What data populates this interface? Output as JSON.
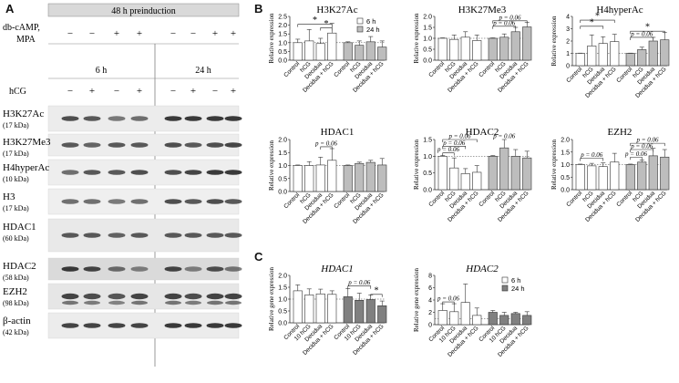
{
  "panel_labels": [
    "A",
    "B",
    "C"
  ],
  "blot": {
    "preinduction_label": "48 h preinduction",
    "treatment_label": "db-cAMP, MPA",
    "treatment_signs": [
      "−",
      "−",
      "+",
      "+",
      "−",
      "−",
      "+",
      "+"
    ],
    "time_labels": [
      "6 h",
      "24 h"
    ],
    "hcg_label": "hCG",
    "hcg_signs": [
      "−",
      "+",
      "−",
      "+",
      "−",
      "+",
      "−",
      "+"
    ],
    "rows": [
      {
        "name": "H3K27Ac",
        "kda": "(17 kDa)"
      },
      {
        "name": "H3K27Me3",
        "kda": "(17 kDa)"
      },
      {
        "name": "H4hyperAc",
        "kda": "(10 kDa)"
      },
      {
        "name": "H3",
        "kda": "(17 kDa)"
      },
      {
        "name": "HDAC1",
        "kda": "(60 kDa)"
      },
      {
        "name": "HDAC2",
        "kda": "(58 kDa)"
      },
      {
        "name": "EZH2",
        "kda": "(98 kDa)"
      },
      {
        "name": "β-actin",
        "kda": "(42 kDa)"
      }
    ]
  },
  "colors": {
    "white_bar": "#ffffff",
    "light_gray_bar": "#bdbdbd",
    "dark_gray_bar": "#808080"
  },
  "chart_data": [
    {
      "type": "bar",
      "title": "H3K27Ac",
      "ylabel": "Relative expression",
      "ylim": [
        0,
        2.5
      ],
      "yticks": [
        "0.0",
        "0.5",
        "1.0",
        "1.5",
        "2.0",
        "2.5"
      ],
      "categories": [
        "Control",
        "hCG",
        "Decidua",
        "Decidua + hCG"
      ],
      "legend": [
        "6 h",
        "24 h"
      ],
      "series": [
        {
          "name": "6 h",
          "values": [
            1.0,
            1.1,
            0.95,
            1.55
          ],
          "err": [
            0.2,
            0.65,
            0.3,
            0.55
          ]
        },
        {
          "name": "24 h",
          "values": [
            1.0,
            0.85,
            1.05,
            0.75
          ],
          "err": [
            0.05,
            0.25,
            0.3,
            0.35
          ]
        }
      ],
      "annotations": [
        {
          "text": "*",
          "a": 0,
          "b": 3,
          "level": 2.05
        },
        {
          "text": "*",
          "a": 2,
          "b": 3,
          "level": 1.85
        }
      ]
    },
    {
      "type": "bar",
      "title": "H3K27Me3",
      "ylabel": "Relative expression",
      "ylim": [
        0,
        2.0
      ],
      "yticks": [
        "0.0",
        "0.5",
        "1.0",
        "1.5",
        "2.0"
      ],
      "categories": [
        "Control",
        "hCG",
        "Decidua",
        "Decidua + hCG"
      ],
      "series": [
        {
          "name": "6 h",
          "values": [
            1.0,
            0.95,
            1.05,
            0.9
          ],
          "err": [
            0.02,
            0.2,
            0.25,
            0.25
          ]
        },
        {
          "name": "24 h",
          "values": [
            1.0,
            1.05,
            1.3,
            1.52
          ],
          "err": [
            0.02,
            0.15,
            0.2,
            0.2
          ]
        }
      ],
      "annotations": [
        {
          "text": "p = 0.06",
          "a": 0,
          "b": 2,
          "level": 1.55,
          "series": 1
        },
        {
          "text": "p = 0.06",
          "a": 0,
          "b": 3,
          "level": 1.8,
          "series": 1
        }
      ]
    },
    {
      "type": "bar",
      "title": "H4hyperAc",
      "ylabel": "Relative expression",
      "ylim": [
        0,
        4
      ],
      "yticks": [
        "0",
        "1",
        "2",
        "3",
        "4"
      ],
      "categories": [
        "Control",
        "hCG",
        "Decidua",
        "Decidua + hCG"
      ],
      "series": [
        {
          "name": "6 h",
          "values": [
            1.0,
            1.6,
            1.8,
            1.95
          ],
          "err": [
            0.02,
            0.9,
            0.55,
            0.6
          ]
        },
        {
          "name": "24 h",
          "values": [
            1.0,
            1.3,
            2.0,
            2.1
          ],
          "err": [
            0.02,
            0.2,
            0.3,
            0.6
          ]
        }
      ],
      "annotations": [
        {
          "text": "*",
          "a": 0,
          "b": 3,
          "level": 3.7
        },
        {
          "text": "*",
          "a": 0,
          "b": 2,
          "level": 3.2
        },
        {
          "text": "*",
          "a": 0,
          "b": 3,
          "level": 2.8,
          "series": 1
        },
        {
          "text": "p = 0.06",
          "a": 0,
          "b": 2,
          "level": 2.3,
          "series": 1
        }
      ]
    },
    {
      "type": "bar",
      "title": "HDAC1",
      "ylabel": "Relative expression",
      "ylim": [
        0,
        2.0
      ],
      "yticks": [
        "0.0",
        "0.5",
        "1.0",
        "1.5",
        "2.0"
      ],
      "categories": [
        "Control",
        "hCG",
        "Decidua",
        "Decidua + hCG"
      ],
      "series": [
        {
          "name": "6 h",
          "values": [
            1.0,
            1.0,
            1.02,
            1.2
          ],
          "err": [
            0.02,
            0.15,
            0.3,
            0.45
          ]
        },
        {
          "name": "24 h",
          "values": [
            1.0,
            1.08,
            1.12,
            1.02
          ],
          "err": [
            0.02,
            0.05,
            0.08,
            0.25
          ]
        }
      ],
      "annotations": [
        {
          "text": "p = 0.06",
          "a": 2,
          "b": 3,
          "level": 1.72
        }
      ]
    },
    {
      "type": "bar",
      "title": "HDAC2",
      "ylabel": "Relative expression",
      "ylim": [
        0,
        1.5
      ],
      "yticks": [
        "0.0",
        "0.5",
        "1.0",
        "1.5"
      ],
      "categories": [
        "Control",
        "hCG",
        "Decidua",
        "Decidua + hCG"
      ],
      "series": [
        {
          "name": "6 h",
          "values": [
            1.0,
            0.65,
            0.48,
            0.52
          ],
          "err": [
            0.02,
            0.3,
            0.15,
            0.2
          ]
        },
        {
          "name": "24 h",
          "values": [
            1.0,
            1.25,
            1.0,
            0.95
          ],
          "err": [
            0.02,
            0.25,
            0.2,
            0.2
          ]
        }
      ],
      "annotations": [
        {
          "text": "p = 0.06",
          "a": 0,
          "b": 3,
          "level": 1.5
        },
        {
          "text": "p = 0.06",
          "a": 0,
          "b": 2,
          "level": 1.3
        },
        {
          "text": "p = 0.06",
          "a": 0,
          "b": 1,
          "level": 1.1
        },
        {
          "text": "p = 0.06",
          "a": 1,
          "b": 1,
          "level": 1.5,
          "series": 1
        }
      ]
    },
    {
      "type": "bar",
      "title": "EZH2",
      "ylabel": "Relative expression",
      "ylim": [
        0,
        2.0
      ],
      "yticks": [
        "0.0",
        "0.5",
        "1.0",
        "1.5",
        "2.0"
      ],
      "categories": [
        "Control",
        "hCG",
        "Decidua",
        "Decidua + hCG"
      ],
      "series": [
        {
          "name": "6 h",
          "values": [
            1.0,
            0.95,
            0.92,
            1.1
          ],
          "err": [
            0.02,
            0.1,
            0.15,
            0.35
          ]
        },
        {
          "name": "24 h",
          "values": [
            1.0,
            1.1,
            1.35,
            1.3
          ],
          "err": [
            0.02,
            0.08,
            0.3,
            0.3
          ]
        }
      ],
      "annotations": [
        {
          "text": "p = 0.06",
          "a": 0,
          "b": 2,
          "level": 1.25
        },
        {
          "text": "p = 0.06",
          "a": 0,
          "b": 1,
          "level": 1.3,
          "series": 1
        },
        {
          "text": "p = 0.06",
          "a": 0,
          "b": 2,
          "level": 1.6,
          "series": 1
        },
        {
          "text": "p = 0.06",
          "a": 0,
          "b": 3,
          "level": 1.85,
          "series": 1
        }
      ]
    },
    {
      "type": "bar",
      "title": "HDAC1",
      "title_italic": true,
      "ylabel": "Relative gene expression",
      "ylim": [
        0,
        2.0
      ],
      "yticks": [
        "0.0",
        "0.5",
        "1.0",
        "1.5",
        "2.0"
      ],
      "categories": [
        "Control",
        "10 hCG",
        "Decidua",
        "Decidua + hCG"
      ],
      "series": [
        {
          "name": "6 h",
          "values": [
            1.35,
            1.18,
            1.22,
            1.2
          ],
          "err": [
            0.25,
            0.25,
            0.2,
            0.15
          ]
        },
        {
          "name": "24 h",
          "values": [
            1.1,
            0.95,
            0.98,
            0.72
          ],
          "err": [
            0.35,
            0.3,
            0.2,
            0.2
          ]
        }
      ],
      "annotations": [
        {
          "text": "p = 0.06",
          "a": 0,
          "b": 2,
          "level": 1.55,
          "series": 1
        },
        {
          "text": "*",
          "a": 2,
          "b": 3,
          "level": 1.2,
          "series": 1
        }
      ]
    },
    {
      "type": "bar",
      "title": "HDAC2",
      "title_italic": true,
      "ylabel": "Relative gene expression",
      "ylim": [
        0,
        8
      ],
      "yticks": [
        "0",
        "2",
        "4",
        "6",
        "8"
      ],
      "categories": [
        "Control",
        "10 hCG",
        "Decidua",
        "Decidua + hCG"
      ],
      "legend": [
        "6 h",
        "24 h"
      ],
      "series": [
        {
          "name": "6 h",
          "values": [
            2.3,
            2.1,
            3.6,
            1.5
          ],
          "err": [
            1.1,
            1.3,
            3.0,
            1.2
          ]
        },
        {
          "name": "24 h",
          "values": [
            2.0,
            1.5,
            1.8,
            1.5
          ],
          "err": [
            0.3,
            0.5,
            0.2,
            0.6
          ]
        }
      ],
      "annotations": [
        {
          "text": "p = 0.06",
          "a": 0,
          "b": 1,
          "level": 3.7
        }
      ]
    }
  ]
}
